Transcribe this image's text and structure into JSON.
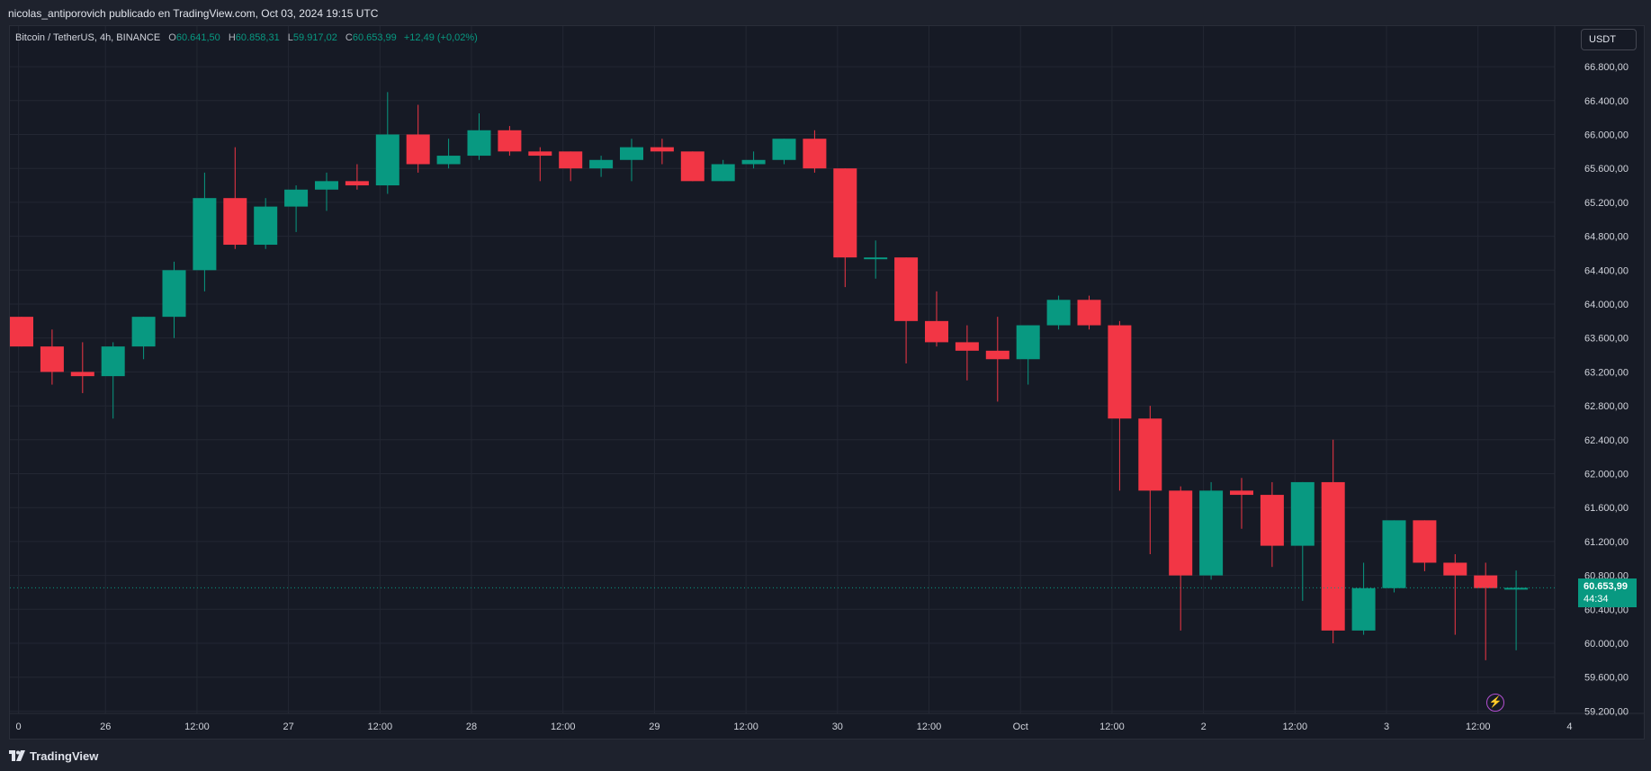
{
  "header": {
    "publisher_text": "nicolas_antiporovich publicado en TradingView.com, Oct 03, 2024 19:15 UTC"
  },
  "legend": {
    "symbol": "Bitcoin / TetherUS, 4h, BINANCE",
    "open_key": "O",
    "open": "60.641,50",
    "high_key": "H",
    "high": "60.858,31",
    "low_key": "L",
    "low": "59.917,02",
    "close_key": "C",
    "close": "60.653,99",
    "change": "+12,49 (+0,02%)"
  },
  "currency_button": "USDT",
  "last_price": {
    "value": "60.653,99",
    "countdown": "44:34"
  },
  "footer": {
    "brand": "TradingView"
  },
  "icons": {
    "flash": "flash-icon",
    "logo": "tradingview-logo-icon"
  },
  "colors": {
    "up": "#089981",
    "down": "#f23645",
    "background": "#161a25",
    "grid": "#232733"
  },
  "chart_data": {
    "type": "candlestick",
    "title": "Bitcoin / TetherUS, 4h, BINANCE",
    "xlabel": "",
    "ylabel": "",
    "ylim": [
      59000,
      67200
    ],
    "y_ticks": [
      "66.800,00",
      "66.400,00",
      "66.000,00",
      "65.600,00",
      "65.200,00",
      "64.800,00",
      "64.400,00",
      "64.000,00",
      "63.600,00",
      "63.200,00",
      "62.800,00",
      "62.400,00",
      "62.000,00",
      "61.600,00",
      "61.200,00",
      "60.800,00",
      "60.400,00",
      "60.000,00",
      "59.600,00",
      "59.200,00"
    ],
    "y_tick_values": [
      66800,
      66400,
      66000,
      65600,
      65200,
      64800,
      64400,
      64000,
      63600,
      63200,
      62800,
      62400,
      62000,
      61600,
      61200,
      60800,
      60400,
      60000,
      59600,
      59200
    ],
    "x_ticks": [
      {
        "label": "0",
        "index": -0.1
      },
      {
        "label": "26",
        "index": 2.75
      },
      {
        "label": "12:00",
        "index": 5.75
      },
      {
        "label": "27",
        "index": 8.75
      },
      {
        "label": "12:00",
        "index": 11.75
      },
      {
        "label": "28",
        "index": 14.75
      },
      {
        "label": "12:00",
        "index": 17.75
      },
      {
        "label": "29",
        "index": 20.75
      },
      {
        "label": "12:00",
        "index": 23.75
      },
      {
        "label": "30",
        "index": 26.75
      },
      {
        "label": "12:00",
        "index": 29.75
      },
      {
        "label": "Oct",
        "index": 32.75
      },
      {
        "label": "12:00",
        "index": 35.75
      },
      {
        "label": "2",
        "index": 38.75
      },
      {
        "label": "12:00",
        "index": 41.75
      },
      {
        "label": "3",
        "index": 44.75
      },
      {
        "label": "12:00",
        "index": 47.75
      },
      {
        "label": "4",
        "index": 50.75
      }
    ],
    "candles": [
      {
        "o": 63850,
        "h": 63850,
        "l": 63500,
        "c": 63500
      },
      {
        "o": 63500,
        "h": 63700,
        "l": 63050,
        "c": 63200
      },
      {
        "o": 63200,
        "h": 63550,
        "l": 62950,
        "c": 63150
      },
      {
        "o": 63150,
        "h": 63550,
        "l": 62650,
        "c": 63500
      },
      {
        "o": 63500,
        "h": 63850,
        "l": 63350,
        "c": 63850
      },
      {
        "o": 63850,
        "h": 64500,
        "l": 63600,
        "c": 64400
      },
      {
        "o": 64400,
        "h": 65550,
        "l": 64150,
        "c": 65250
      },
      {
        "o": 65250,
        "h": 65850,
        "l": 64650,
        "c": 64700
      },
      {
        "o": 64700,
        "h": 65250,
        "l": 64650,
        "c": 65150
      },
      {
        "o": 65150,
        "h": 65400,
        "l": 64850,
        "c": 65350
      },
      {
        "o": 65350,
        "h": 65550,
        "l": 65100,
        "c": 65450
      },
      {
        "o": 65450,
        "h": 65650,
        "l": 65350,
        "c": 65400
      },
      {
        "o": 65400,
        "h": 66500,
        "l": 65300,
        "c": 66000
      },
      {
        "o": 66000,
        "h": 66350,
        "l": 65550,
        "c": 65650
      },
      {
        "o": 65650,
        "h": 65950,
        "l": 65600,
        "c": 65750
      },
      {
        "o": 65750,
        "h": 66250,
        "l": 65700,
        "c": 66050
      },
      {
        "o": 66050,
        "h": 66100,
        "l": 65750,
        "c": 65800
      },
      {
        "o": 65800,
        "h": 65850,
        "l": 65450,
        "c": 65750
      },
      {
        "o": 65800,
        "h": 65800,
        "l": 65450,
        "c": 65600
      },
      {
        "o": 65600,
        "h": 65750,
        "l": 65500,
        "c": 65700
      },
      {
        "o": 65700,
        "h": 65950,
        "l": 65450,
        "c": 65850
      },
      {
        "o": 65850,
        "h": 65950,
        "l": 65650,
        "c": 65800
      },
      {
        "o": 65800,
        "h": 65800,
        "l": 65450,
        "c": 65450
      },
      {
        "o": 65450,
        "h": 65700,
        "l": 65450,
        "c": 65650
      },
      {
        "o": 65650,
        "h": 65800,
        "l": 65600,
        "c": 65700
      },
      {
        "o": 65700,
        "h": 65950,
        "l": 65650,
        "c": 65950
      },
      {
        "o": 65950,
        "h": 66050,
        "l": 65550,
        "c": 65600
      },
      {
        "o": 65600,
        "h": 65600,
        "l": 64200,
        "c": 64550
      },
      {
        "o": 64550,
        "h": 64750,
        "l": 64300,
        "c": 64550
      },
      {
        "o": 64550,
        "h": 64550,
        "l": 63300,
        "c": 63800
      },
      {
        "o": 63800,
        "h": 64150,
        "l": 63500,
        "c": 63550
      },
      {
        "o": 63550,
        "h": 63750,
        "l": 63100,
        "c": 63450
      },
      {
        "o": 63450,
        "h": 63850,
        "l": 62850,
        "c": 63350
      },
      {
        "o": 63350,
        "h": 63750,
        "l": 63050,
        "c": 63750
      },
      {
        "o": 63750,
        "h": 64100,
        "l": 63700,
        "c": 64050
      },
      {
        "o": 64050,
        "h": 64100,
        "l": 63700,
        "c": 63750
      },
      {
        "o": 63750,
        "h": 63800,
        "l": 61800,
        "c": 62650
      },
      {
        "o": 62650,
        "h": 62800,
        "l": 61050,
        "c": 61800
      },
      {
        "o": 61800,
        "h": 61850,
        "l": 60150,
        "c": 60800
      },
      {
        "o": 60800,
        "h": 61900,
        "l": 60750,
        "c": 61800
      },
      {
        "o": 61800,
        "h": 61950,
        "l": 61350,
        "c": 61750
      },
      {
        "o": 61750,
        "h": 61900,
        "l": 60900,
        "c": 61150
      },
      {
        "o": 61150,
        "h": 61900,
        "l": 60500,
        "c": 61900
      },
      {
        "o": 61900,
        "h": 62400,
        "l": 60000,
        "c": 60150
      },
      {
        "o": 60150,
        "h": 60950,
        "l": 60100,
        "c": 60650
      },
      {
        "o": 60650,
        "h": 61450,
        "l": 60600,
        "c": 61450
      },
      {
        "o": 61450,
        "h": 61450,
        "l": 60850,
        "c": 60950
      },
      {
        "o": 60950,
        "h": 61050,
        "l": 60100,
        "c": 60800
      },
      {
        "o": 60800,
        "h": 60950,
        "l": 59800,
        "c": 60650
      },
      {
        "o": 60641,
        "h": 60858,
        "l": 59917,
        "c": 60654
      }
    ],
    "last_price_value": 60653.99,
    "grid": true,
    "legend_position": "top-left"
  }
}
